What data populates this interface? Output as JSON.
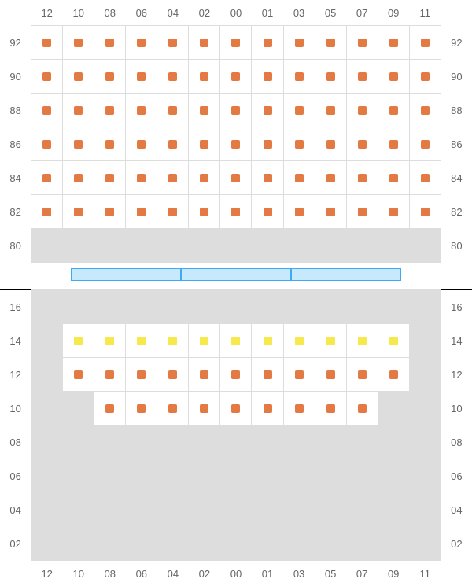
{
  "colors": {
    "available": "#e37a43",
    "premium": "#f5e94c",
    "bg_unavailable": "#dddddd",
    "bg_available": "#ffffff",
    "stage_fill": "#c6eafc",
    "stage_border": "#3fa9f5",
    "frame": "#000000",
    "grid": "#dddddd",
    "label": "#666666"
  },
  "columns": [
    "12",
    "10",
    "08",
    "06",
    "04",
    "02",
    "00",
    "01",
    "03",
    "05",
    "07",
    "09",
    "11"
  ],
  "top_section": {
    "rows": [
      "92",
      "90",
      "88",
      "86",
      "84",
      "82",
      "80"
    ],
    "cells": [
      [
        1,
        1,
        1,
        1,
        1,
        1,
        1,
        1,
        1,
        1,
        1,
        1,
        1
      ],
      [
        1,
        1,
        1,
        1,
        1,
        1,
        1,
        1,
        1,
        1,
        1,
        1,
        1
      ],
      [
        1,
        1,
        1,
        1,
        1,
        1,
        1,
        1,
        1,
        1,
        1,
        1,
        1
      ],
      [
        1,
        1,
        1,
        1,
        1,
        1,
        1,
        1,
        1,
        1,
        1,
        1,
        1
      ],
      [
        1,
        1,
        1,
        1,
        1,
        1,
        1,
        1,
        1,
        1,
        1,
        1,
        1
      ],
      [
        1,
        1,
        1,
        1,
        1,
        1,
        1,
        1,
        1,
        1,
        1,
        1,
        1
      ],
      [
        0,
        0,
        0,
        0,
        0,
        0,
        0,
        0,
        0,
        0,
        0,
        0,
        0
      ]
    ]
  },
  "bottom_section": {
    "rows": [
      "16",
      "14",
      "12",
      "10",
      "08",
      "06",
      "04",
      "02"
    ],
    "cells": [
      [
        0,
        0,
        0,
        0,
        0,
        0,
        0,
        0,
        0,
        0,
        0,
        0,
        0
      ],
      [
        0,
        2,
        2,
        2,
        2,
        2,
        2,
        2,
        2,
        2,
        2,
        2,
        0
      ],
      [
        0,
        1,
        1,
        1,
        1,
        1,
        1,
        1,
        1,
        1,
        1,
        1,
        0
      ],
      [
        0,
        0,
        1,
        1,
        1,
        1,
        1,
        1,
        1,
        1,
        1,
        0,
        0
      ],
      [
        0,
        0,
        0,
        0,
        0,
        0,
        0,
        0,
        0,
        0,
        0,
        0,
        0
      ],
      [
        0,
        0,
        0,
        0,
        0,
        0,
        0,
        0,
        0,
        0,
        0,
        0,
        0
      ],
      [
        0,
        0,
        0,
        0,
        0,
        0,
        0,
        0,
        0,
        0,
        0,
        0,
        0
      ],
      [
        0,
        0,
        0,
        0,
        0,
        0,
        0,
        0,
        0,
        0,
        0,
        0,
        0
      ]
    ]
  },
  "stage_segments": 3
}
